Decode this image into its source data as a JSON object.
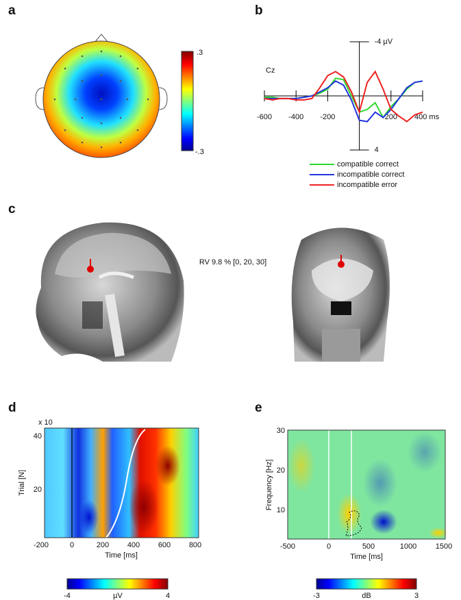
{
  "panel_labels": [
    "a",
    "b",
    "c",
    "d",
    "e"
  ],
  "panel_a": {
    "colorbar_ticks": [
      ".3",
      "-.3"
    ]
  },
  "chart_data": {
    "type": "line",
    "annotation": "Cz",
    "x": [
      -600,
      -550,
      -500,
      -450,
      -400,
      -350,
      -300,
      -250,
      -200,
      -150,
      -100,
      -50,
      0,
      50,
      100,
      150,
      200,
      250,
      300,
      350,
      400
    ],
    "series": [
      {
        "name": "compatible correct",
        "color": "#2ed82e",
        "values": [
          0.1,
          0.1,
          0.2,
          0.2,
          0.2,
          0.1,
          0,
          -0.2,
          -0.5,
          -1.3,
          -1.2,
          0,
          1.2,
          1.0,
          0.5,
          1.6,
          0.8,
          0.2,
          -0.5,
          -1.0,
          -1.1
        ]
      },
      {
        "name": "incompatible correct",
        "color": "#2233dd",
        "values": [
          0.2,
          0.2,
          0.2,
          0.2,
          0.2,
          0.1,
          0,
          -0.3,
          -0.6,
          -1.1,
          -0.8,
          0.3,
          1.8,
          1.9,
          1.2,
          1.6,
          1.0,
          0.2,
          -0.6,
          -1.0,
          -1.1
        ]
      },
      {
        "name": "incompatible error",
        "color": "#ee2222",
        "values": [
          0.2,
          0.3,
          0.2,
          0.2,
          0.3,
          0.3,
          0.2,
          -0.6,
          -1.5,
          -1.8,
          -1.4,
          -0.3,
          1.2,
          -1.0,
          -1.8,
          -0.5,
          1.0,
          1.5,
          1.9,
          1.4,
          1.2
        ]
      }
    ],
    "xlim": [
      -600,
      400
    ],
    "xticks": [
      -600,
      -400,
      -200,
      200,
      {
        "value": 400,
        "label": "400 ms"
      }
    ],
    "ylim": [
      -4,
      4
    ],
    "y_inverted": true,
    "yticks": [
      {
        "value": -4,
        "label": "-4 µV"
      },
      4
    ]
  },
  "panel_c": {
    "annotation": "RV 9.8 % [0, 20, 30]"
  },
  "panel_d": {
    "y_multiplier": "x 10",
    "y_label": "Trial [N]",
    "x_label": "Time [ms]",
    "x_ticks": [
      "-200",
      "0",
      "200",
      "400",
      "600",
      "800"
    ],
    "y_ticks": [
      "40",
      "20"
    ],
    "colorbar_ticks": [
      "-4",
      "4"
    ],
    "colorbar_unit": "µV"
  },
  "panel_e": {
    "y_label": "Frequency [Hz]",
    "x_label": "Time [ms]",
    "x_ticks": [
      "-500",
      "0",
      "500",
      "1000",
      "1500"
    ],
    "y_ticks": [
      "30",
      "20",
      "10"
    ],
    "colorbar_ticks": [
      "-3",
      "3"
    ],
    "colorbar_unit": "dB"
  }
}
